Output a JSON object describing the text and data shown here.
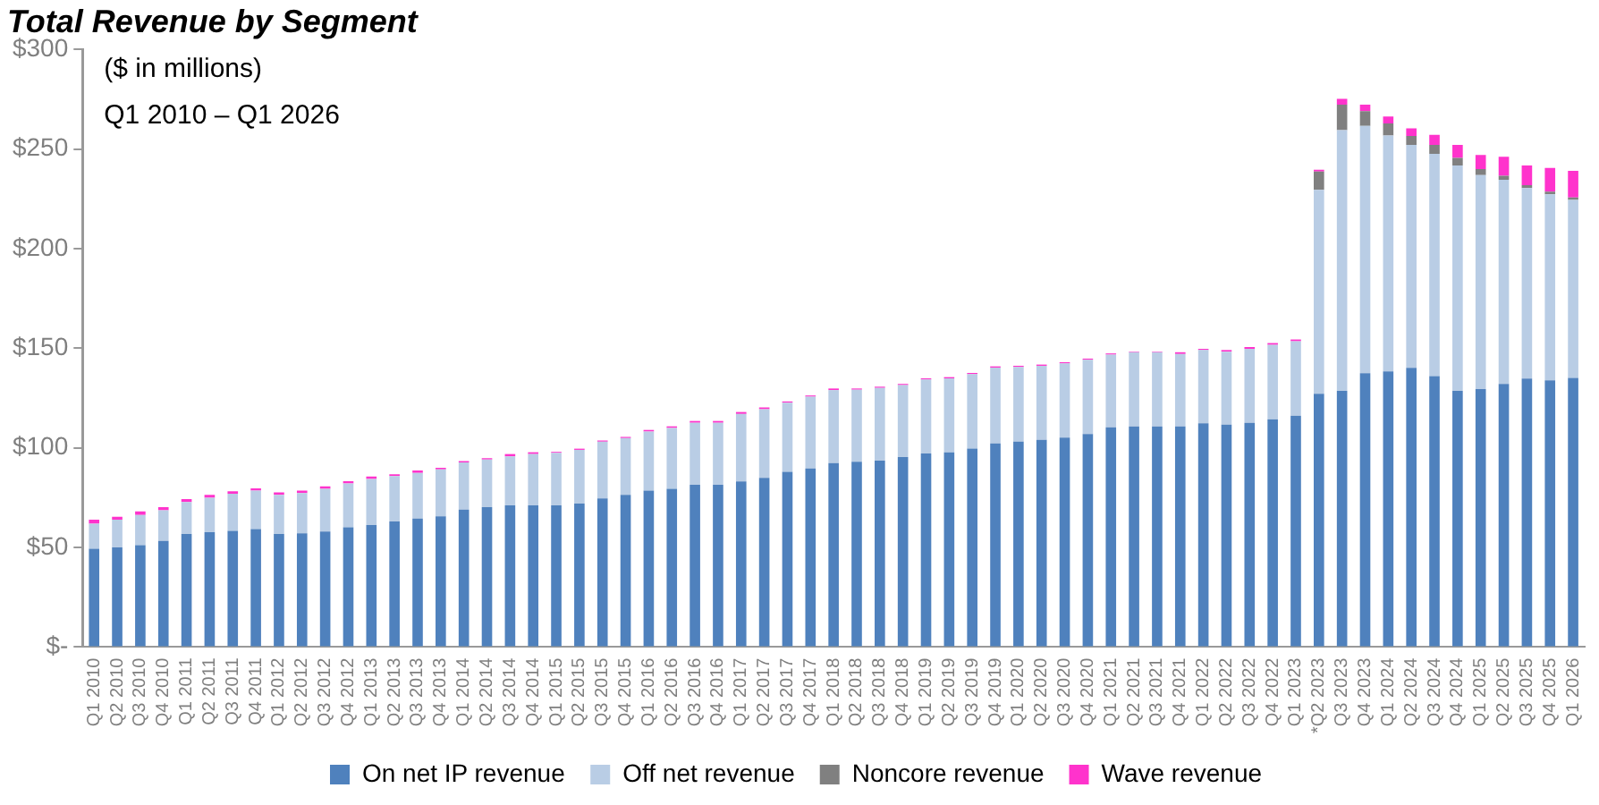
{
  "chart_data": {
    "type": "bar",
    "title": "Total Revenue by Segment",
    "subtitle": "($ in millions)",
    "annotations": [
      "Q1 2010 – Q1 2026"
    ],
    "categories": [
      "Q1 2010",
      "Q2 2010",
      "Q3 2010",
      "Q4 2010",
      "Q1 2011",
      "Q2 2011",
      "Q3 2011",
      "Q4 2011",
      "Q1 2012",
      "Q2 2012",
      "Q3 2012",
      "Q4 2012",
      "Q1 2013",
      "Q2 2013",
      "Q3 2013",
      "Q4 2013",
      "Q1 2014",
      "Q2 2014",
      "Q3 2014",
      "Q4 2014",
      "Q1 2015",
      "Q2 2015",
      "Q3 2015",
      "Q4 2015",
      "Q1 2016",
      "Q2 2016",
      "Q3 2016",
      "Q4 2016",
      "Q1 2017",
      "Q2 2017",
      "Q3 2017",
      "Q4 2017",
      "Q1 2018",
      "Q2 2018",
      "Q3 2018",
      "Q4 2018",
      "Q1 2019",
      "Q2 2019",
      "Q3 2019",
      "Q4 2019",
      "Q1 2020",
      "Q2 2020",
      "Q3 2020",
      "Q4 2020",
      "Q1 2021",
      "Q2 2021",
      "Q3 2021",
      "Q4 2021",
      "Q1 2022",
      "Q2 2022",
      "Q3 2022",
      "Q4 2022",
      "Q1 2023",
      "*Q2 2023",
      "Q3 2023",
      "Q4 2023",
      "Q1 2024",
      "Q2 2024",
      "Q3 2024",
      "Q4 2024",
      "Q1 2025",
      "Q2 2025",
      "Q3 2025",
      "Q4 2025",
      "Q1 2026"
    ],
    "stacked": true,
    "grid": false,
    "legend": "bottom",
    "ylim": [
      0,
      300
    ],
    "yticks": [
      {
        "value": 0,
        "label": "$-"
      },
      {
        "value": 50,
        "label": "$50"
      },
      {
        "value": 100,
        "label": "$100"
      },
      {
        "value": 150,
        "label": "$150"
      },
      {
        "value": 200,
        "label": "$200"
      },
      {
        "value": 250,
        "label": "$250"
      },
      {
        "value": 300,
        "label": "$300"
      }
    ],
    "series": [
      {
        "name": "On net IP revenue",
        "color": "#4f81bd",
        "values": [
          49.4,
          50,
          51.2,
          53.3,
          56.8,
          57.7,
          58.3,
          59.2,
          56.8,
          57.1,
          58,
          60.1,
          61.3,
          63.1,
          64.5,
          65.7,
          69,
          70.2,
          71.1,
          71.1,
          71.1,
          72,
          74.6,
          76.4,
          78.5,
          79.4,
          81.5,
          81.5,
          83.2,
          85,
          88,
          89.7,
          92.4,
          93,
          93.6,
          95.4,
          97.2,
          97.8,
          99.6,
          102.2,
          103.1,
          104,
          105.2,
          107,
          110.3,
          110.8,
          110.8,
          110.8,
          112.3,
          111.7,
          112.6,
          114.4,
          116.2,
          127.2,
          128.6,
          137.5,
          138.4,
          140.2,
          136,
          128.6,
          129.5,
          132.1,
          134.8,
          133.9,
          135.1
        ]
      },
      {
        "name": "Off net revenue",
        "color": "#b9cde5",
        "values": [
          12.5,
          14,
          15.1,
          15.4,
          16,
          17.3,
          18.7,
          19.3,
          19.6,
          20.2,
          21.4,
          22,
          23.1,
          22.8,
          22.9,
          23.5,
          23.7,
          24,
          24.6,
          25.8,
          26.4,
          27,
          28.5,
          28.5,
          29.7,
          30.6,
          31.1,
          31.1,
          33.8,
          34.4,
          34.7,
          36,
          36.6,
          36.2,
          36.5,
          36.1,
          37.1,
          37.1,
          37.4,
          38.1,
          37.5,
          37.2,
          37.2,
          37.2,
          36.5,
          37.2,
          37.2,
          36.3,
          36.8,
          36.6,
          37.1,
          37.3,
          37.3,
          102.3,
          130.9,
          124.1,
          118.4,
          111.9,
          111.6,
          113.1,
          107.4,
          102.4,
          95.6,
          93.3,
          89.4
        ]
      },
      {
        "name": "Noncore revenue",
        "color": "#808080",
        "values": [
          0,
          0,
          0,
          0,
          0,
          0,
          0,
          0,
          0,
          0,
          0,
          0,
          0,
          0,
          0,
          0,
          0,
          0,
          0,
          0,
          0,
          0,
          0,
          0,
          0,
          0,
          0,
          0,
          0,
          0,
          0,
          0,
          0,
          0,
          0,
          0,
          0,
          0,
          0,
          0,
          0,
          0,
          0,
          0,
          0,
          0,
          0,
          0,
          0,
          0,
          0,
          0,
          0,
          9.2,
          12.8,
          7.4,
          6,
          4.4,
          4.5,
          3.8,
          3,
          2.1,
          1.5,
          1.4,
          1.2
        ]
      },
      {
        "name": "Wave revenue",
        "color": "#ff33cc",
        "values": [
          2.1,
          1.4,
          1.8,
          1.5,
          1.5,
          1.4,
          1.2,
          1.2,
          1.2,
          1.2,
          1.3,
          1.2,
          1.2,
          0.9,
          1.2,
          0.8,
          0.7,
          0.6,
          1.2,
          0.9,
          0.5,
          0.6,
          0.6,
          0.6,
          0.8,
          0.8,
          0.9,
          0.9,
          1,
          0.9,
          0.6,
          0.6,
          0.8,
          0.6,
          0.6,
          0.6,
          0.6,
          0.6,
          0.6,
          0.6,
          0.6,
          0.6,
          0.6,
          0.6,
          0.6,
          0.3,
          0.3,
          0.9,
          0.6,
          0.8,
          0.9,
          0.9,
          0.9,
          0.9,
          2.9,
          3.3,
          3.5,
          3.9,
          5,
          6.6,
          7.1,
          9.5,
          9.8,
          11.9,
          13.3
        ]
      }
    ]
  }
}
